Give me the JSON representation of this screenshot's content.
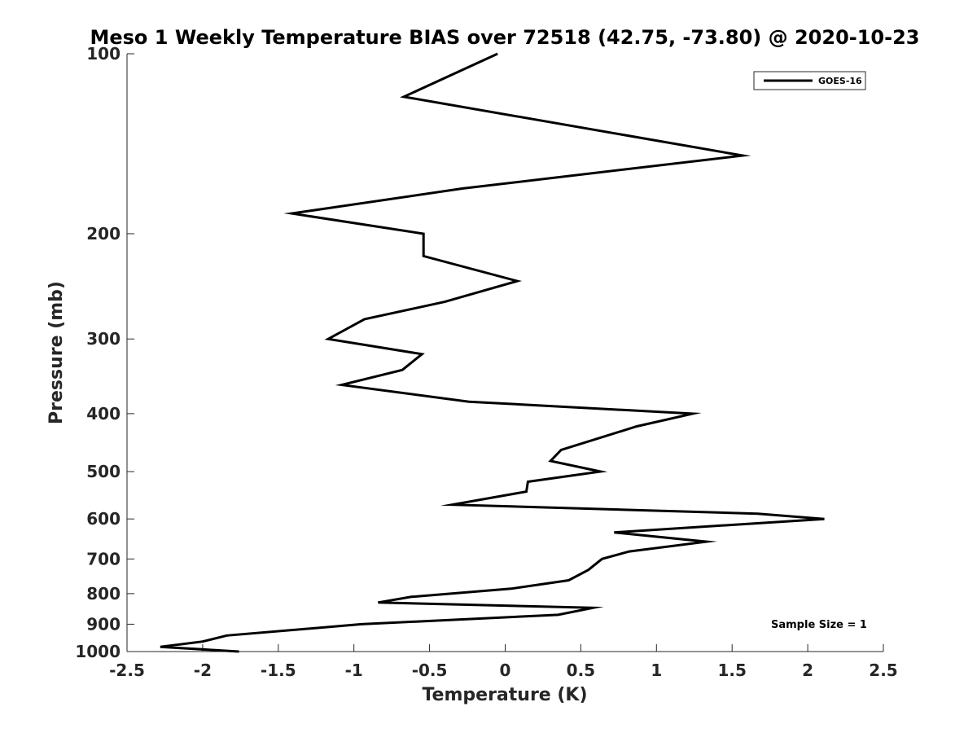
{
  "chart_data": {
    "type": "line",
    "title": "Meso 1 Weekly Temperature BIAS over 72518 (42.75, -73.80) @ 2020-10-23",
    "xlabel": "Temperature (K)",
    "ylabel": "Pressure (mb)",
    "xlim": [
      -2.5,
      2.5
    ],
    "ylim": [
      100,
      1000
    ],
    "yscale": "log",
    "yreversed": true,
    "grid": false,
    "legend_position": "top-right",
    "x_ticks": [
      -2.5,
      -2,
      -1.5,
      -1,
      -0.5,
      0,
      0.5,
      1,
      1.5,
      2,
      2.5
    ],
    "x_tick_labels": [
      "-2.5",
      "-2",
      "-1.5",
      "-1",
      "-0.5",
      "0",
      "0.5",
      "1",
      "1.5",
      "2",
      "2.5"
    ],
    "y_ticks": [
      100,
      200,
      300,
      400,
      500,
      600,
      700,
      800,
      900,
      1000
    ],
    "y_tick_labels": [
      "100",
      "200",
      "300",
      "400",
      "500",
      "600",
      "700",
      "800",
      "900",
      "1000"
    ],
    "series": [
      {
        "name": "GOES-16",
        "color": "#000000",
        "points": [
          {
            "x": -0.05,
            "p": 100
          },
          {
            "x": -0.67,
            "p": 118
          },
          {
            "x": 1.57,
            "p": 148
          },
          {
            "x": -0.28,
            "p": 168
          },
          {
            "x": -1.41,
            "p": 185
          },
          {
            "x": -0.54,
            "p": 200
          },
          {
            "x": -0.54,
            "p": 218
          },
          {
            "x": 0.08,
            "p": 240
          },
          {
            "x": -0.4,
            "p": 260
          },
          {
            "x": -0.93,
            "p": 278
          },
          {
            "x": -1.17,
            "p": 300
          },
          {
            "x": -0.55,
            "p": 318
          },
          {
            "x": -0.68,
            "p": 338
          },
          {
            "x": -1.08,
            "p": 358
          },
          {
            "x": -0.24,
            "p": 382
          },
          {
            "x": 1.24,
            "p": 400
          },
          {
            "x": 0.87,
            "p": 420
          },
          {
            "x": 0.37,
            "p": 460
          },
          {
            "x": 0.3,
            "p": 480
          },
          {
            "x": 0.63,
            "p": 500
          },
          {
            "x": 0.15,
            "p": 520
          },
          {
            "x": 0.14,
            "p": 540
          },
          {
            "x": -0.35,
            "p": 568
          },
          {
            "x": 1.67,
            "p": 588
          },
          {
            "x": 2.11,
            "p": 600
          },
          {
            "x": 0.72,
            "p": 632
          },
          {
            "x": 1.33,
            "p": 655
          },
          {
            "x": 0.82,
            "p": 680
          },
          {
            "x": 0.64,
            "p": 700
          },
          {
            "x": 0.55,
            "p": 730
          },
          {
            "x": 0.42,
            "p": 760
          },
          {
            "x": 0.04,
            "p": 785
          },
          {
            "x": -0.62,
            "p": 810
          },
          {
            "x": -0.84,
            "p": 828
          },
          {
            "x": 0.58,
            "p": 845
          },
          {
            "x": 0.35,
            "p": 868
          },
          {
            "x": -0.95,
            "p": 900
          },
          {
            "x": -1.84,
            "p": 940
          },
          {
            "x": -2.0,
            "p": 962
          },
          {
            "x": -2.28,
            "p": 982
          },
          {
            "x": -1.76,
            "p": 1000
          }
        ]
      }
    ],
    "legend": [
      "GOES-16"
    ],
    "annotation": "Sample Size = 1"
  }
}
